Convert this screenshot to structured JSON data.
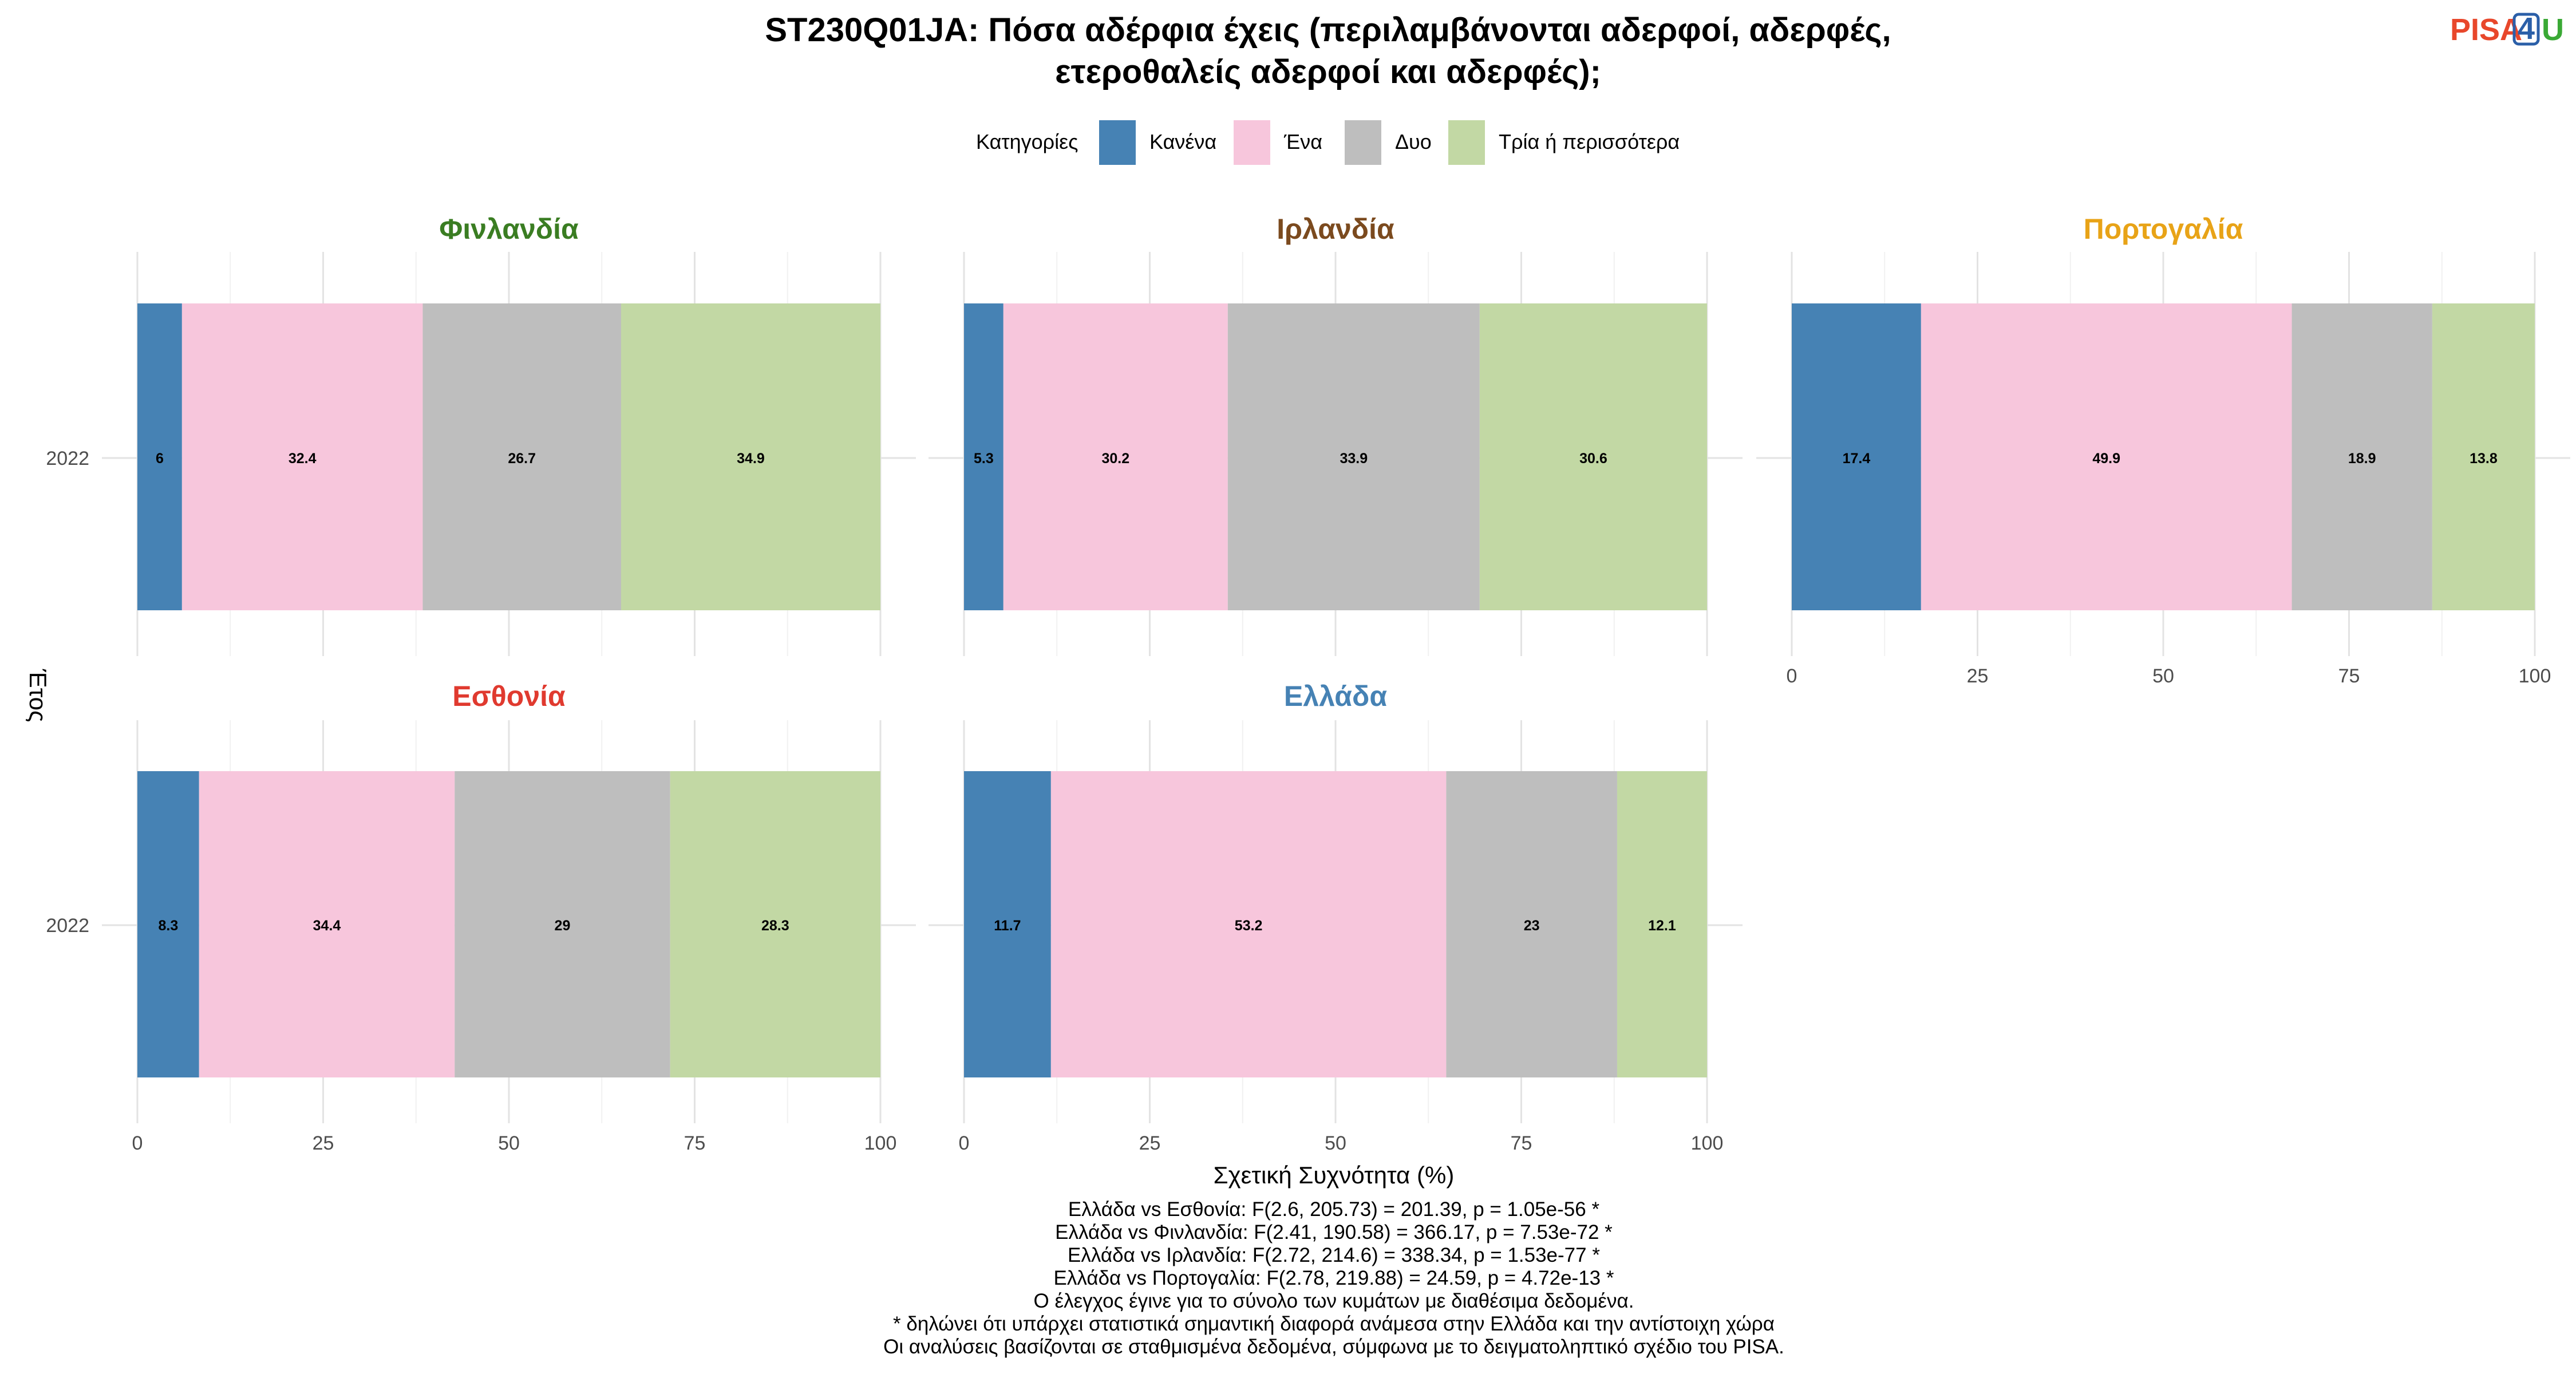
{
  "title_lines": [
    "ST230Q01JA: Πόσα αδέρφια έχεις (περιλαμβάνονται αδερφοί, αδερφές,",
    "ετεροθαλείς αδερφοί και αδερφές);"
  ],
  "logo": {
    "part1": "PISA",
    "part2": "4",
    "part3": "U",
    "colors": {
      "part1": "#e8472b",
      "part2": "#2b5fa8",
      "part3": "#3aa935"
    }
  },
  "legend": {
    "title": "Κατηγορίες",
    "items": [
      {
        "label": "Κανένα",
        "color": "#4682b4"
      },
      {
        "label": "Ένα",
        "color": "#f7c6dc"
      },
      {
        "label": "Δυο",
        "color": "#bebebe"
      },
      {
        "label": "Τρία ή περισσότερα",
        "color": "#c2d8a4"
      }
    ]
  },
  "axes": {
    "xlabel": "Σχετική Συχνότητα (%)",
    "ylabel": "Έτος"
  },
  "notes": [
    "Ελλάδα vs Εσθονία: F(2.6, 205.73) = 201.39, p = 1.05e-56 *",
    "Ελλάδα vs Φινλανδία: F(2.41, 190.58) = 366.17, p = 7.53e-72 *",
    "Ελλάδα vs Ιρλανδία: F(2.72, 214.6) = 338.34, p = 1.53e-77 *",
    "Ελλάδα vs Πορτογαλία: F(2.78, 219.88) = 24.59, p = 4.72e-13 *",
    "Ο έλεγχος έγινε για το σύνολο των κυμάτων με διαθέσιμα δεδομένα.",
    "* δηλώνει ότι υπάρχει στατιστικά σημαντική διαφορά ανάμεσα στην Ελλάδα και την αντίστοιχη χώρα",
    "Οι αναλύσεις βασίζονται σε σταθμισμένα δεδομένα, σύμφωνα με το δειγματοληπτικό σχέδιο του PISA."
  ],
  "chart_data": {
    "type": "bar",
    "orientation": "horizontal",
    "stacked": true,
    "categories": [
      "2022"
    ],
    "xlim": [
      0,
      100
    ],
    "xticks": [
      0,
      25,
      50,
      75,
      100
    ],
    "grid": true,
    "legend_position": "top",
    "panels": [
      {
        "country": "Φινλανδία",
        "title_color": "#3a7d22",
        "series": [
          {
            "name": "Κανένα",
            "values": [
              6
            ]
          },
          {
            "name": "Ένα",
            "values": [
              32.4
            ]
          },
          {
            "name": "Δυο",
            "values": [
              26.7
            ]
          },
          {
            "name": "Τρία ή περισσότερα",
            "values": [
              34.9
            ]
          }
        ]
      },
      {
        "country": "Ιρλανδία",
        "title_color": "#7b4a1e",
        "series": [
          {
            "name": "Κανένα",
            "values": [
              5.3
            ]
          },
          {
            "name": "Ένα",
            "values": [
              30.2
            ]
          },
          {
            "name": "Δυο",
            "values": [
              33.9
            ]
          },
          {
            "name": "Τρία ή περισσότερα",
            "values": [
              30.6
            ]
          }
        ]
      },
      {
        "country": "Πορτογαλία",
        "title_color": "#e8a317",
        "series": [
          {
            "name": "Κανένα",
            "values": [
              17.4
            ]
          },
          {
            "name": "Ένα",
            "values": [
              49.9
            ]
          },
          {
            "name": "Δυο",
            "values": [
              18.9
            ]
          },
          {
            "name": "Τρία ή περισσότερα",
            "values": [
              13.8
            ]
          }
        ]
      },
      {
        "country": "Εσθονία",
        "title_color": "#e03a2f",
        "series": [
          {
            "name": "Κανένα",
            "values": [
              8.3
            ]
          },
          {
            "name": "Ένα",
            "values": [
              34.4
            ]
          },
          {
            "name": "Δυο",
            "values": [
              29
            ]
          },
          {
            "name": "Τρία ή περισσότερα",
            "values": [
              28.3
            ]
          }
        ]
      },
      {
        "country": "Ελλάδα",
        "title_color": "#4682b4",
        "series": [
          {
            "name": "Κανένα",
            "values": [
              11.7
            ]
          },
          {
            "name": "Ένα",
            "values": [
              53.2
            ]
          },
          {
            "name": "Δυο",
            "values": [
              23
            ]
          },
          {
            "name": "Τρία ή περισσότερα",
            "values": [
              12.1
            ]
          }
        ]
      }
    ]
  }
}
